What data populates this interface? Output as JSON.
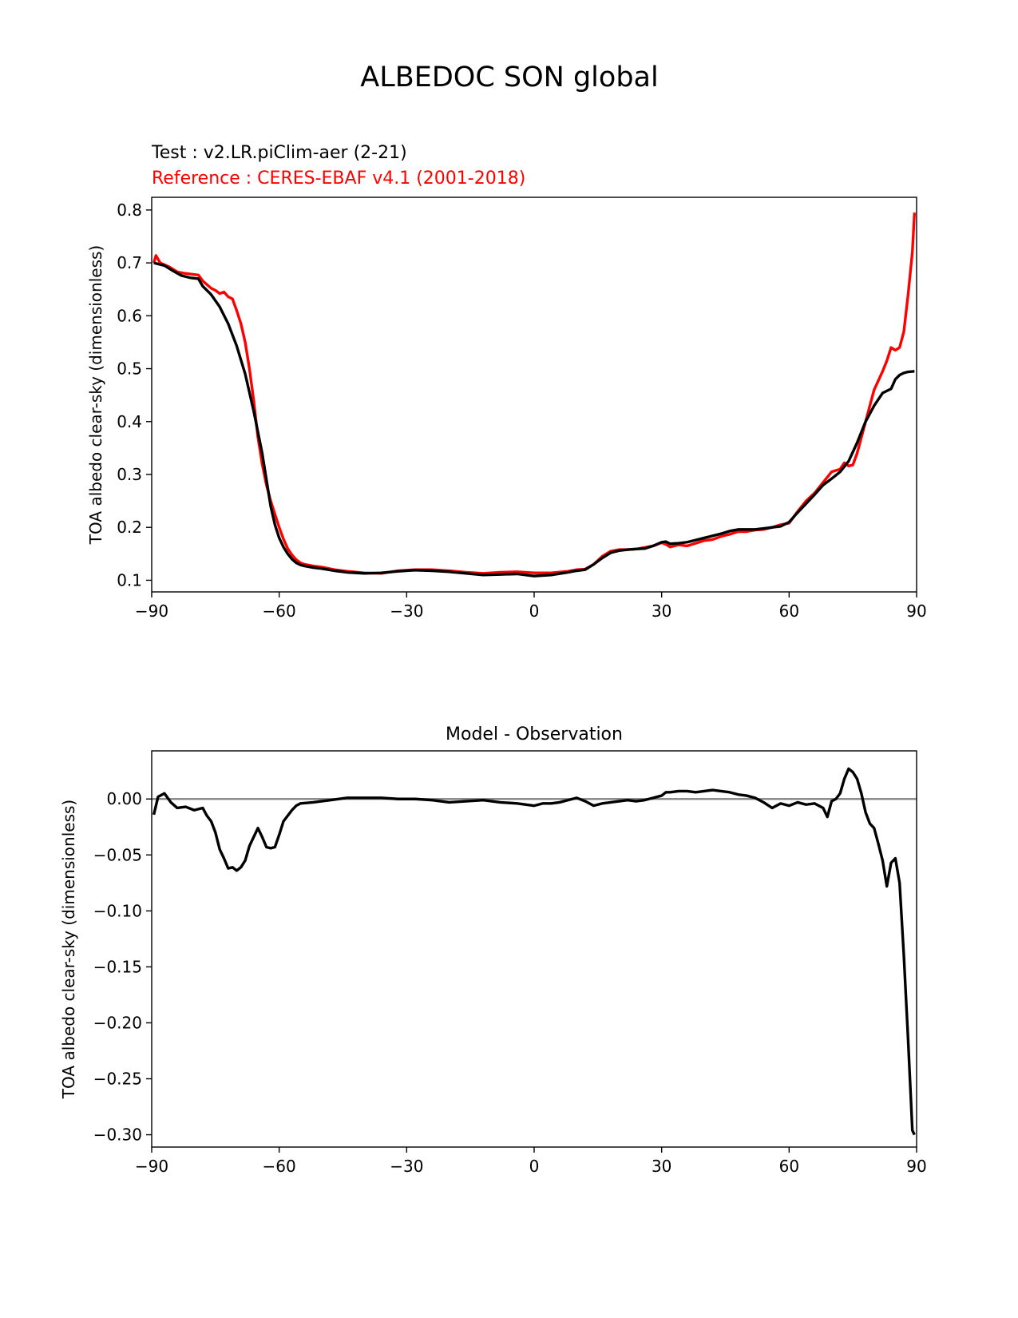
{
  "figure": {
    "suptitle": "ALBEDOC SON global",
    "test_label": "Test : v2.LR.piClim-aer (2-21)",
    "reference_label": "Reference : CERES-EBAF v4.1 (2001-2018)",
    "colors": {
      "test": "#000000",
      "reference": "#ff0000",
      "zero_line": "#808080"
    }
  },
  "chart_data": [
    {
      "type": "line",
      "xlabel": "",
      "ylabel": "TOA albedo clear-sky (dimensionless)",
      "xlim": [
        -90,
        90
      ],
      "ylim": [
        0.078,
        0.824
      ],
      "xticks": [
        -90,
        -60,
        -30,
        0,
        30,
        60,
        90
      ],
      "xtick_labels": [
        "−90",
        "−60",
        "−30",
        "0",
        "30",
        "60",
        "90"
      ],
      "yticks": [
        0.1,
        0.2,
        0.3,
        0.4,
        0.5,
        0.6,
        0.7,
        0.8
      ],
      "ytick_labels": [
        "0.1",
        "0.2",
        "0.3",
        "0.4",
        "0.5",
        "0.6",
        "0.7",
        "0.8"
      ],
      "series": [
        {
          "name": "Test",
          "color": "#000000",
          "x": [
            -89.5,
            -87,
            -85,
            -83,
            -81,
            -79,
            -78,
            -76,
            -74,
            -72,
            -70,
            -68,
            -66,
            -64,
            -63,
            -62,
            -61,
            -60,
            -59,
            -58,
            -57,
            -56,
            -55,
            -54,
            -52,
            -50,
            -47,
            -44,
            -40,
            -36,
            -32,
            -28,
            -24,
            -20,
            -16,
            -12,
            -8,
            -4,
            0,
            4,
            8,
            10,
            12,
            14,
            16,
            18,
            20,
            22,
            24,
            26,
            28,
            30,
            31,
            32,
            34,
            36,
            38,
            40,
            42,
            44,
            46,
            48,
            50,
            52,
            54,
            56,
            58,
            60,
            62,
            64,
            66,
            68,
            70,
            72,
            74,
            76,
            78,
            80,
            82,
            84,
            85,
            86,
            87,
            88,
            89.5
          ],
          "y": [
            0.7,
            0.695,
            0.685,
            0.676,
            0.672,
            0.67,
            0.656,
            0.64,
            0.617,
            0.585,
            0.543,
            0.49,
            0.42,
            0.34,
            0.29,
            0.24,
            0.205,
            0.18,
            0.163,
            0.15,
            0.14,
            0.133,
            0.129,
            0.127,
            0.124,
            0.122,
            0.118,
            0.115,
            0.113,
            0.114,
            0.117,
            0.119,
            0.118,
            0.116,
            0.113,
            0.11,
            0.111,
            0.112,
            0.108,
            0.11,
            0.115,
            0.118,
            0.12,
            0.13,
            0.142,
            0.152,
            0.156,
            0.158,
            0.159,
            0.16,
            0.165,
            0.172,
            0.173,
            0.169,
            0.17,
            0.172,
            0.176,
            0.18,
            0.184,
            0.188,
            0.193,
            0.196,
            0.196,
            0.196,
            0.198,
            0.2,
            0.202,
            0.21,
            0.228,
            0.245,
            0.262,
            0.28,
            0.292,
            0.305,
            0.325,
            0.36,
            0.4,
            0.43,
            0.454,
            0.462,
            0.48,
            0.488,
            0.492,
            0.494,
            0.495
          ]
        },
        {
          "name": "Reference",
          "color": "#ff0000",
          "x": [
            -89.5,
            -89,
            -88,
            -86,
            -84,
            -82,
            -80,
            -79,
            -78,
            -76,
            -75,
            -74,
            -73,
            -72,
            -71,
            -70,
            -69,
            -68,
            -67,
            -66,
            -65,
            -64,
            -63,
            -62,
            -61,
            -60,
            -59,
            -58,
            -57,
            -56,
            -55,
            -54,
            -52,
            -50,
            -47,
            -44,
            -40,
            -36,
            -32,
            -28,
            -24,
            -20,
            -16,
            -12,
            -8,
            -4,
            0,
            4,
            8,
            10,
            12,
            14,
            16,
            18,
            20,
            22,
            24,
            26,
            28,
            30,
            31,
            32,
            34,
            36,
            38,
            40,
            42,
            44,
            46,
            48,
            50,
            52,
            54,
            56,
            58,
            60,
            62,
            64,
            66,
            68,
            70,
            72,
            73,
            74,
            75,
            76,
            78,
            80,
            82,
            83,
            84,
            85,
            86,
            87,
            88,
            89,
            89.5
          ],
          "y": [
            0.7,
            0.714,
            0.7,
            0.693,
            0.683,
            0.68,
            0.678,
            0.677,
            0.666,
            0.652,
            0.648,
            0.642,
            0.645,
            0.636,
            0.632,
            0.61,
            0.585,
            0.55,
            0.5,
            0.44,
            0.37,
            0.32,
            0.28,
            0.25,
            0.225,
            0.2,
            0.178,
            0.16,
            0.148,
            0.139,
            0.133,
            0.13,
            0.127,
            0.125,
            0.12,
            0.117,
            0.114,
            0.113,
            0.118,
            0.12,
            0.12,
            0.118,
            0.115,
            0.113,
            0.115,
            0.116,
            0.114,
            0.114,
            0.117,
            0.12,
            0.121,
            0.13,
            0.145,
            0.155,
            0.158,
            0.158,
            0.159,
            0.162,
            0.165,
            0.171,
            0.168,
            0.163,
            0.167,
            0.165,
            0.17,
            0.175,
            0.177,
            0.183,
            0.187,
            0.192,
            0.192,
            0.195,
            0.196,
            0.2,
            0.205,
            0.208,
            0.23,
            0.25,
            0.265,
            0.285,
            0.305,
            0.31,
            0.322,
            0.316,
            0.318,
            0.34,
            0.4,
            0.46,
            0.495,
            0.515,
            0.54,
            0.535,
            0.54,
            0.57,
            0.64,
            0.72,
            0.795
          ]
        }
      ]
    },
    {
      "type": "line",
      "title": "Model - Observation",
      "xlabel": "",
      "ylabel": "TOA albedo clear-sky (dimensionless)",
      "xlim": [
        -90,
        90
      ],
      "ylim": [
        -0.311,
        0.043
      ],
      "xticks": [
        -90,
        -60,
        -30,
        0,
        30,
        60,
        90
      ],
      "xtick_labels": [
        "−90",
        "−60",
        "−30",
        "0",
        "30",
        "60",
        "90"
      ],
      "yticks": [
        0.0,
        -0.05,
        -0.1,
        -0.15,
        -0.2,
        -0.25,
        -0.3
      ],
      "ytick_labels": [
        "0.00",
        "−0.05",
        "−0.10",
        "−0.15",
        "−0.20",
        "−0.25",
        "−0.30"
      ],
      "reference_line": 0,
      "series": [
        {
          "name": "Model - Observation",
          "color": "#000000",
          "x": [
            -89.5,
            -88.5,
            -87,
            -85.5,
            -84,
            -82,
            -80,
            -78,
            -77,
            -76,
            -75,
            -74,
            -73,
            -72,
            -71,
            -70,
            -69,
            -68,
            -67,
            -66,
            -65,
            -64,
            -63,
            -62,
            -61,
            -60,
            -59,
            -58,
            -57,
            -56,
            -55,
            -52,
            -48,
            -44,
            -40,
            -36,
            -32,
            -28,
            -24,
            -20,
            -16,
            -12,
            -8,
            -4,
            0,
            2,
            4,
            6,
            8,
            10,
            12,
            14,
            16,
            18,
            20,
            22,
            24,
            26,
            28,
            30,
            31,
            32,
            34,
            36,
            38,
            40,
            42,
            44,
            46,
            48,
            50,
            52,
            54,
            56,
            58,
            60,
            62,
            64,
            66,
            68,
            69,
            70,
            71,
            72,
            73,
            74,
            75,
            76,
            77,
            78,
            79,
            80,
            81,
            82,
            83,
            84,
            85,
            86,
            87,
            88,
            89,
            89.5
          ],
          "y": [
            -0.014,
            0.002,
            0.005,
            -0.003,
            -0.008,
            -0.007,
            -0.01,
            -0.008,
            -0.015,
            -0.02,
            -0.03,
            -0.045,
            -0.053,
            -0.062,
            -0.061,
            -0.064,
            -0.061,
            -0.055,
            -0.042,
            -0.034,
            -0.026,
            -0.034,
            -0.043,
            -0.044,
            -0.043,
            -0.032,
            -0.02,
            -0.015,
            -0.01,
            -0.006,
            -0.004,
            -0.003,
            -0.001,
            0.001,
            0.001,
            0.001,
            0.0,
            0.0,
            -0.001,
            -0.003,
            -0.002,
            -0.001,
            -0.003,
            -0.004,
            -0.006,
            -0.004,
            -0.004,
            -0.003,
            -0.001,
            0.001,
            -0.002,
            -0.006,
            -0.004,
            -0.003,
            -0.002,
            -0.001,
            -0.002,
            -0.001,
            0.001,
            0.003,
            0.006,
            0.006,
            0.007,
            0.007,
            0.006,
            0.007,
            0.008,
            0.007,
            0.006,
            0.004,
            0.003,
            0.001,
            -0.003,
            -0.008,
            -0.004,
            -0.006,
            -0.003,
            -0.005,
            -0.004,
            -0.008,
            -0.016,
            -0.002,
            0.0,
            0.005,
            0.018,
            0.027,
            0.024,
            0.018,
            0.005,
            -0.012,
            -0.022,
            -0.026,
            -0.04,
            -0.055,
            -0.078,
            -0.057,
            -0.053,
            -0.075,
            -0.14,
            -0.215,
            -0.296,
            -0.3
          ]
        }
      ]
    }
  ]
}
